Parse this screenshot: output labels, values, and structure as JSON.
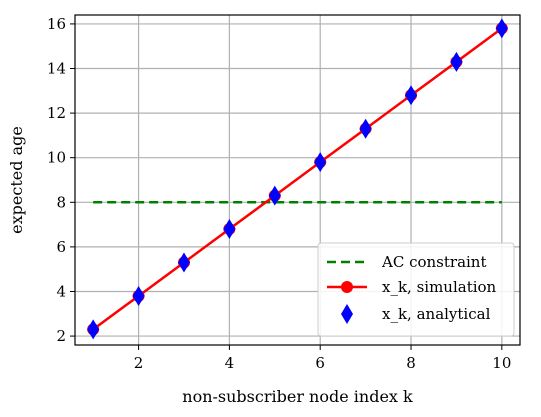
{
  "chart_data": {
    "type": "line",
    "title": "",
    "xlabel": "non-subscriber node index k",
    "ylabel": "expected age",
    "xlim": [
      0.6,
      10.4
    ],
    "ylim": [
      1.6,
      16.4
    ],
    "xticks": [
      2,
      4,
      6,
      8,
      10
    ],
    "yticks": [
      2,
      4,
      6,
      8,
      10,
      12,
      14,
      16
    ],
    "grid": true,
    "legend_position": "lower-right",
    "series": [
      {
        "name": "AC constraint",
        "style": "dashed",
        "color": "#008000",
        "x": [
          1,
          10
        ],
        "y": [
          8,
          8
        ]
      },
      {
        "name": "x_k, simulation",
        "style": "solid-line-circle-markers",
        "color": "#ff0000",
        "x": [
          1,
          2,
          3,
          4,
          5,
          6,
          7,
          8,
          9,
          10
        ],
        "y": [
          2.3,
          3.8,
          5.3,
          6.8,
          8.3,
          9.8,
          11.3,
          12.8,
          14.3,
          15.8
        ]
      },
      {
        "name": "x_k, analytical",
        "style": "diamond-markers",
        "color": "#0000ff",
        "x": [
          1,
          2,
          3,
          4,
          5,
          6,
          7,
          8,
          9,
          10
        ],
        "y": [
          2.3,
          3.8,
          5.3,
          6.8,
          8.3,
          9.8,
          11.3,
          12.8,
          14.3,
          15.8
        ]
      }
    ]
  }
}
